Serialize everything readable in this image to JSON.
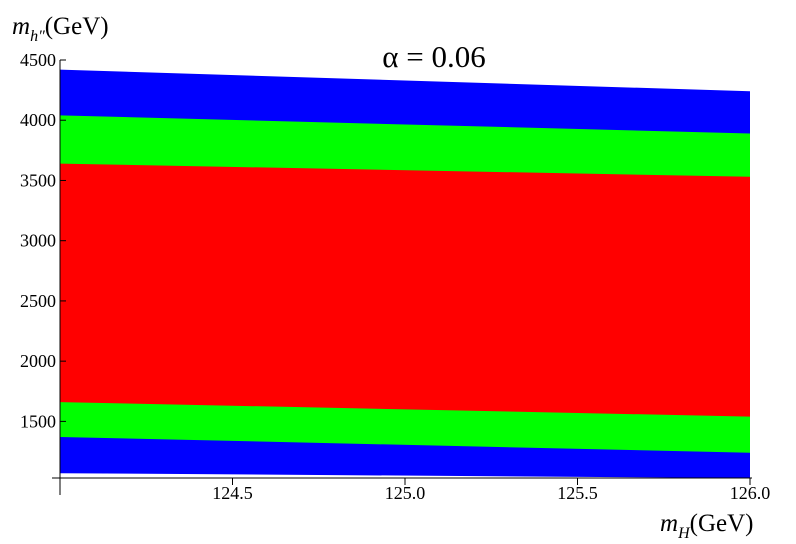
{
  "chart_data": {
    "type": "area",
    "title": "α = 0.06",
    "xlabel": {
      "base": "m",
      "sub": "H",
      "unit": "(GeV)"
    },
    "ylabel": {
      "base": "m",
      "sub": "h″",
      "unit": "(GeV)"
    },
    "xlim": [
      124.0,
      126.0
    ],
    "ylim": [
      1030,
      4500
    ],
    "x_ticks": [
      124.5,
      125.0,
      125.5,
      126.0
    ],
    "x_tick_labels": [
      "124.5",
      "125.0",
      "125.5",
      "126.0"
    ],
    "y_ticks": [
      1500,
      2000,
      2500,
      3000,
      3500,
      4000,
      4500
    ],
    "y_tick_labels": [
      "1500",
      "2000",
      "2500",
      "3000",
      "3500",
      "4000",
      "4500"
    ],
    "grid": false,
    "bands": [
      {
        "color": "#0000ff",
        "x": [
          124.0,
          126.0
        ],
        "lower": [
          1070,
          1030
        ],
        "upper": [
          4420,
          4240
        ]
      },
      {
        "color": "#00ff00",
        "x": [
          124.0,
          126.0
        ],
        "lower": [
          1370,
          1240
        ],
        "upper": [
          4040,
          3890
        ]
      },
      {
        "color": "#ff0000",
        "x": [
          124.0,
          126.0
        ],
        "lower": [
          1660,
          1540
        ],
        "upper": [
          3640,
          3530
        ]
      }
    ]
  }
}
